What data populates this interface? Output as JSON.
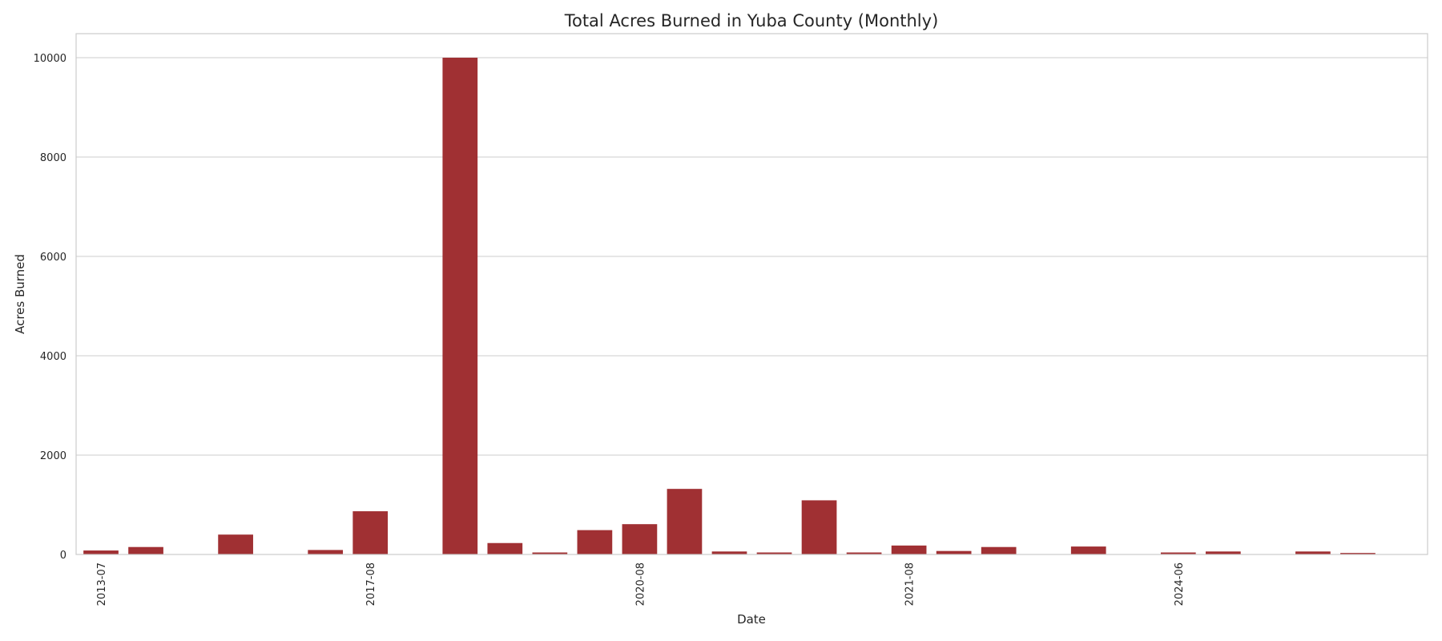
{
  "chart_data": {
    "type": "bar",
    "title": "Total Acres Burned in Yuba County (Monthly)",
    "xlabel": "Date",
    "ylabel": "Acres Burned",
    "ylim": [
      0,
      10500
    ],
    "y_ticks": [
      0,
      2000,
      4000,
      6000,
      8000,
      10000
    ],
    "grid": "horizontal",
    "bar_color": "#a03033",
    "categories": [
      "2013-07",
      "",
      "",
      "",
      "",
      "",
      "2017-08",
      "",
      "",
      "",
      "",
      "",
      "2020-08",
      "",
      "",
      "",
      "",
      "",
      "2021-08",
      "",
      "",
      "",
      "",
      "",
      "2024-06",
      "",
      "",
      "",
      "",
      ""
    ],
    "tick_labels": [
      {
        "index": 0,
        "label": "2013-07"
      },
      {
        "index": 6,
        "label": "2017-08"
      },
      {
        "index": 12,
        "label": "2020-08"
      },
      {
        "index": 18,
        "label": "2021-08"
      },
      {
        "index": 24,
        "label": "2024-06"
      }
    ],
    "values": [
      80,
      150,
      5,
      400,
      5,
      90,
      870,
      5,
      10000,
      230,
      40,
      490,
      610,
      1320,
      60,
      40,
      1090,
      40,
      180,
      70,
      150,
      5,
      160,
      5,
      40,
      60,
      5,
      60,
      30,
      0
    ]
  }
}
